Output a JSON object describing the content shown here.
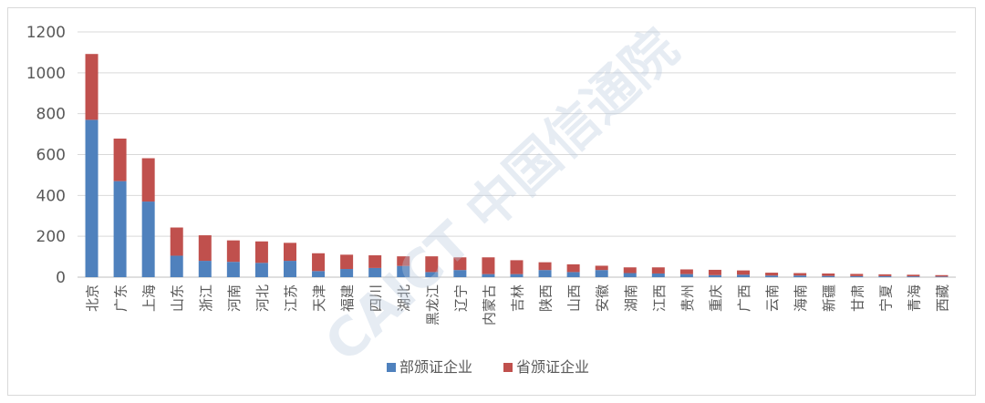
{
  "chart_data": {
    "type": "bar",
    "stacked": true,
    "categories": [
      "北京",
      "广东",
      "上海",
      "山东",
      "浙江",
      "河南",
      "河北",
      "江苏",
      "天津",
      "福建",
      "四川",
      "湖北",
      "黑龙江",
      "辽宁",
      "内蒙古",
      "吉林",
      "陕西",
      "山西",
      "安徽",
      "湖南",
      "江西",
      "贵州",
      "重庆",
      "广西",
      "云南",
      "海南",
      "新疆",
      "甘肃",
      "宁夏",
      "青海",
      "西藏"
    ],
    "series": [
      {
        "name": "部颁证企业",
        "color": "#4f81bd",
        "values": [
          770,
          470,
          370,
          105,
          80,
          75,
          70,
          80,
          30,
          40,
          45,
          55,
          25,
          35,
          15,
          15,
          35,
          25,
          35,
          20,
          18,
          15,
          10,
          12,
          8,
          8,
          6,
          5,
          5,
          4,
          3
        ]
      },
      {
        "name": "省颁证企业",
        "color": "#c0504d",
        "values": [
          322,
          208,
          212,
          138,
          125,
          105,
          105,
          88,
          87,
          70,
          62,
          47,
          77,
          62,
          82,
          68,
          38,
          38,
          21,
          28,
          30,
          23,
          26,
          21,
          14,
          12,
          12,
          11,
          9,
          8,
          7
        ]
      }
    ],
    "ylim": [
      0,
      1200
    ],
    "yticks": [
      0,
      200,
      400,
      600,
      800,
      1000,
      1200
    ],
    "grid": true,
    "legend": "bottom"
  },
  "watermark": "CAICT 中国信通院"
}
